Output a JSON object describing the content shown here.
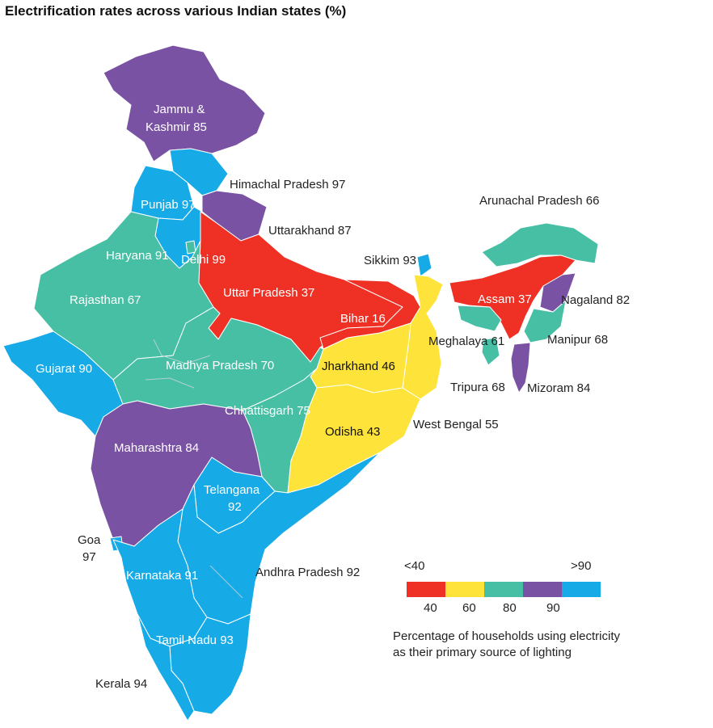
{
  "title": "Electrification rates across various Indian states (%)",
  "colors": {
    "lt40": "#ee3124",
    "40to60": "#fde33a",
    "60to80": "#47bfa4",
    "80to90": "#7a52a4",
    "gt90": "#16aae6"
  },
  "states": [
    {
      "name": "Jammu & Kashmir",
      "value": 85
    },
    {
      "name": "Himachal Pradesh",
      "value": 97
    },
    {
      "name": "Punjab",
      "value": 97
    },
    {
      "name": "Uttarakhand",
      "value": 87
    },
    {
      "name": "Haryana",
      "value": 91
    },
    {
      "name": "Delhi",
      "value": 99
    },
    {
      "name": "Rajasthan",
      "value": 67
    },
    {
      "name": "Uttar Pradesh",
      "value": 37
    },
    {
      "name": "Bihar",
      "value": 16
    },
    {
      "name": "Sikkim",
      "value": 93
    },
    {
      "name": "Arunachal Pradesh",
      "value": 66
    },
    {
      "name": "Assam",
      "value": 37
    },
    {
      "name": "Nagaland",
      "value": 82
    },
    {
      "name": "Meghalaya",
      "value": 61
    },
    {
      "name": "Manipur",
      "value": 68
    },
    {
      "name": "Gujarat",
      "value": 90
    },
    {
      "name": "Madhya Pradesh",
      "value": 70
    },
    {
      "name": "Jharkhand",
      "value": 46
    },
    {
      "name": "Tripura",
      "value": 68
    },
    {
      "name": "Mizoram",
      "value": 84
    },
    {
      "name": "Chhattisgarh",
      "value": 75
    },
    {
      "name": "West Bengal",
      "value": 55
    },
    {
      "name": "Odisha",
      "value": 43
    },
    {
      "name": "Maharashtra",
      "value": 84
    },
    {
      "name": "Telangana",
      "value": 92
    },
    {
      "name": "Goa",
      "value": 97
    },
    {
      "name": "Andhra Pradesh",
      "value": 92
    },
    {
      "name": "Karnataka",
      "value": 91
    },
    {
      "name": "Tamil Nadu",
      "value": 93
    },
    {
      "name": "Kerala",
      "value": 94
    }
  ],
  "labels": {
    "jk_line1": "Jammu &",
    "jk_line2": "Kashmir 85",
    "hp": "Himachal Pradesh 97",
    "punjab": "Punjab 97",
    "uttarakhand": "Uttarakhand 87",
    "haryana": "Haryana 91",
    "delhi": "Delhi 99",
    "rajasthan": "Rajasthan 67",
    "up": "Uttar Pradesh 37",
    "bihar": "Bihar 16",
    "sikkim": "Sikkim 93",
    "arunachal": "Arunachal Pradesh 66",
    "assam": "Assam 37",
    "nagaland": "Nagaland 82",
    "meghalaya": "Meghalaya 61",
    "manipur": "Manipur 68",
    "gujarat": "Gujarat 90",
    "mp": "Madhya Pradesh 70",
    "jharkhand": "Jharkhand 46",
    "tripura": "Tripura 68",
    "mizoram": "Mizoram 84",
    "chhattisgarh": "Chhattisgarh 75",
    "westbengal": "West Bengal 55",
    "odisha": "Odisha 43",
    "maharashtra": "Maharashtra 84",
    "telangana_line1": "Telangana",
    "telangana_line2": "92",
    "goa_line1": "Goa",
    "goa_line2": "97",
    "andhra": "Andhra Pradesh 92",
    "karnataka": "Karnataka 91",
    "tamilnadu": "Tamil Nadu 93",
    "kerala": "Kerala 94"
  },
  "legend": {
    "top_left": "<40",
    "top_right": ">90",
    "ticks": [
      "40",
      "60",
      "80",
      "90"
    ],
    "caption_line1": "Percentage of households using electricity",
    "caption_line2": "as their primary source of lighting"
  }
}
